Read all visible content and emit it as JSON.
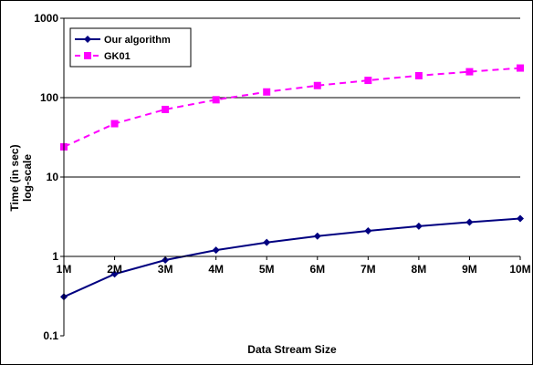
{
  "chart_data": {
    "type": "line",
    "title": "",
    "xlabel": "Data Stream Size",
    "ylabel": [
      "Time (in sec)",
      "log-scale"
    ],
    "yscale": "log",
    "ylim": [
      0.1,
      1000
    ],
    "yticks": [
      {
        "value": 1000,
        "label": "1000"
      },
      {
        "value": 100,
        "label": "100"
      },
      {
        "value": 10,
        "label": "10"
      },
      {
        "value": 1,
        "label": "1"
      },
      {
        "value": 0.1,
        "label": "0.1"
      }
    ],
    "categories": [
      "1M",
      "2M",
      "3M",
      "4M",
      "5M",
      "6M",
      "7M",
      "8M",
      "9M",
      "10M"
    ],
    "grid": "horizontal",
    "legend": "top-left",
    "series": [
      {
        "name": "Our algorithm",
        "color": "#000080",
        "marker": "diamond",
        "dash": "solid",
        "values": [
          0.31,
          0.6,
          0.9,
          1.2,
          1.5,
          1.8,
          2.1,
          2.4,
          2.7,
          3.0
        ]
      },
      {
        "name": "GK01",
        "color": "#FF00FF",
        "marker": "square",
        "dash": "dashed",
        "values": [
          24,
          47,
          71,
          94,
          118,
          142,
          165,
          189,
          212,
          236
        ]
      }
    ]
  }
}
